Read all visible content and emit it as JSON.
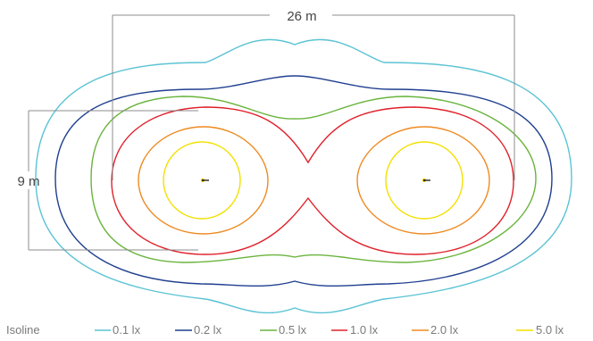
{
  "dimensions": {
    "width_label": "26 m",
    "height_label": "9 m",
    "line_color": "#8c8c8c"
  },
  "legend": {
    "title": "Isoline",
    "items": [
      {
        "label": "0.1 lx",
        "color": "#5bc3d4"
      },
      {
        "label": "0.2 lx",
        "color": "#1f3f8f"
      },
      {
        "label": "0.5 lx",
        "color": "#6ab43e"
      },
      {
        "label": "1.0 lx",
        "color": "#e0202a"
      },
      {
        "label": "2.0 lx",
        "color": "#ee8a22"
      },
      {
        "label": "5.0 lx",
        "color": "#f2e000"
      }
    ]
  },
  "luminaires": [
    {
      "name": "luminaire-left",
      "marker_color": "#000000",
      "accent_color": "#f2d000"
    },
    {
      "name": "luminaire-right",
      "marker_color": "#000000",
      "accent_color": "#f2d000"
    }
  ]
}
